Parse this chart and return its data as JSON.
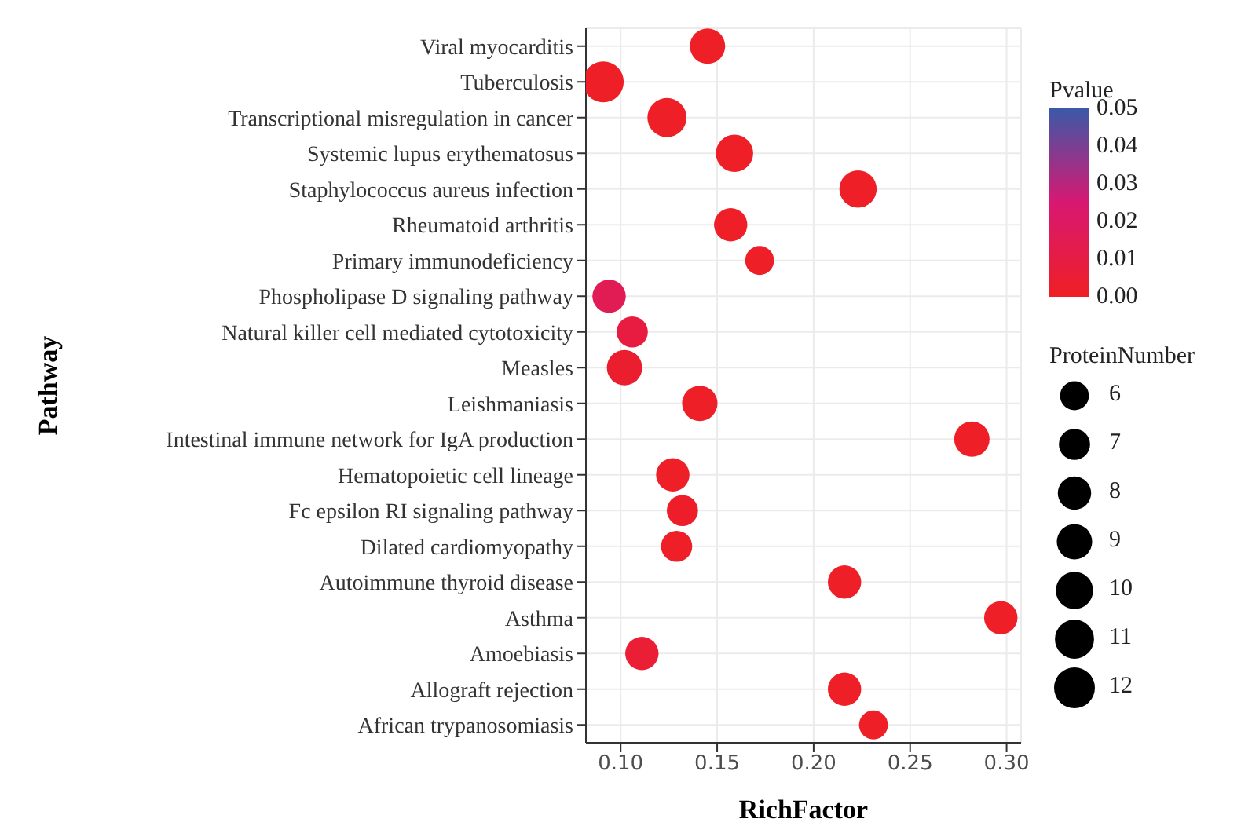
{
  "chart_data": {
    "type": "bubble",
    "orientation": "horizontal",
    "xlabel": "RichFactor",
    "ylabel": "Pathway",
    "clabel": "Pvalue",
    "legend_title": "ProteinNumber",
    "grid": true,
    "categories": [
      "Viral myocarditis",
      "Tuberculosis",
      "Transcriptional misregulation in cancer",
      "Systemic lupus erythematosus",
      "Staphylococcus aureus infection",
      "Rheumatoid arthritis",
      "Primary immunodeficiency",
      "Phospholipase D signaling pathway",
      "Natural killer cell mediated cytotoxicity",
      "Measles",
      "Leishmaniasis",
      "Intestinal immune network for IgA production",
      "Hematopoietic cell lineage",
      "Fc epsilon RI signaling pathway",
      "Dilated cardiomyopathy",
      "Autoimmune thyroid disease",
      "Asthma",
      "Amoebiasis",
      "Allograft rejection",
      "African trypanosomiasis"
    ],
    "values": [
      0.145,
      0.091,
      0.124,
      0.159,
      0.223,
      0.157,
      0.172,
      0.094,
      0.106,
      0.102,
      0.141,
      0.282,
      0.127,
      0.132,
      0.129,
      0.216,
      0.297,
      0.111,
      0.216,
      0.231
    ],
    "sizes": [
      9,
      12,
      11,
      10,
      10,
      8,
      6,
      8,
      7,
      9,
      9,
      9,
      8,
      7,
      7,
      8,
      8,
      8,
      8,
      6
    ],
    "cvalues": [
      0.001,
      0.001,
      0.001,
      0.001,
      0.001,
      0.001,
      0.001,
      0.015,
      0.009,
      0.004,
      0.001,
      0.001,
      0.001,
      0.002,
      0.001,
      0.001,
      0.001,
      0.005,
      0.001,
      0.001
    ],
    "size_legend": [
      6,
      7,
      8,
      9,
      10,
      11,
      12
    ],
    "clim": [
      0,
      0.05
    ],
    "cticks": [
      {
        "value": 0,
        "label": "0.00"
      },
      {
        "value": 0.01,
        "label": "0.01"
      },
      {
        "value": 0.02,
        "label": "0.02"
      },
      {
        "value": 0.03,
        "label": "0.03"
      },
      {
        "value": 0.04,
        "label": "0.04"
      },
      {
        "value": 0.05,
        "label": "0.05"
      }
    ],
    "xlim": [
      0.082,
      0.3075
    ],
    "xticks": [
      {
        "value": 0.1,
        "label": "0.10"
      },
      {
        "value": 0.15,
        "label": "0.15"
      },
      {
        "value": 0.2,
        "label": "0.20"
      },
      {
        "value": 0.25,
        "label": "0.25"
      },
      {
        "value": 0.3,
        "label": "0.30"
      }
    ]
  }
}
